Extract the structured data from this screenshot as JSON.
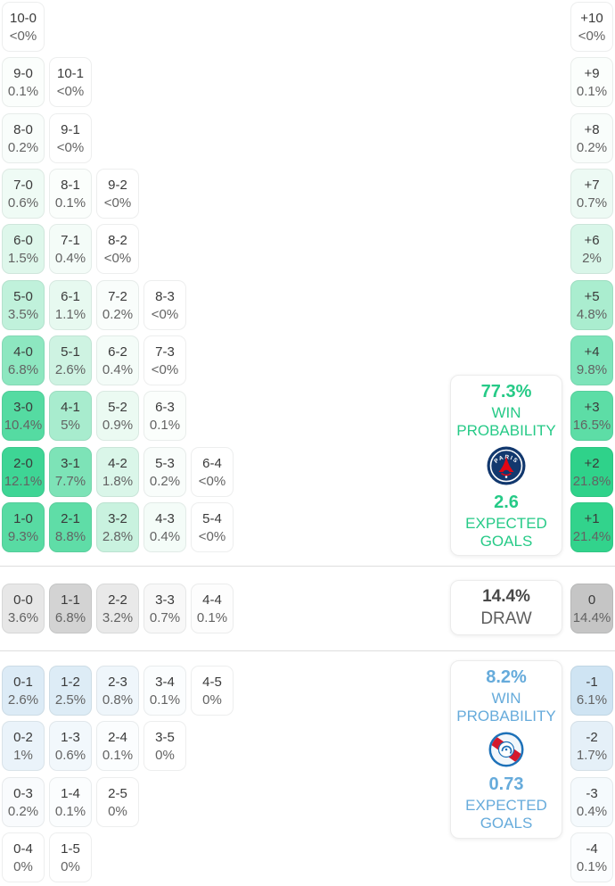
{
  "chart_data": {
    "type": "heatmap",
    "description_labels": {
      "home_color_max": "#3ed595",
      "away_color_max": "#cfe4f3",
      "draw_color_max": "#c5c5c5"
    },
    "sections": {
      "home_win": {
        "cells": [
          {
            "score": "10-0",
            "pct": "<0%",
            "value": 0,
            "bg": "#ffffff"
          },
          {
            "score": "9-0",
            "pct": "0.1%",
            "value": 0.1,
            "bg": "#fbfefc"
          },
          {
            "score": "10-1",
            "pct": "<0%",
            "value": 0,
            "bg": "#ffffff"
          },
          {
            "score": "8-0",
            "pct": "0.2%",
            "value": 0.2,
            "bg": "#f9fdfb"
          },
          {
            "score": "9-1",
            "pct": "<0%",
            "value": 0,
            "bg": "#ffffff"
          },
          {
            "score": "7-0",
            "pct": "0.6%",
            "value": 0.6,
            "bg": "#effbf5"
          },
          {
            "score": "8-1",
            "pct": "0.1%",
            "value": 0.1,
            "bg": "#fbfefc"
          },
          {
            "score": "9-2",
            "pct": "<0%",
            "value": 0,
            "bg": "#ffffff"
          },
          {
            "score": "6-0",
            "pct": "1.5%",
            "value": 1.5,
            "bg": "#def7eb"
          },
          {
            "score": "7-1",
            "pct": "0.4%",
            "value": 0.4,
            "bg": "#f4fcf8"
          },
          {
            "score": "8-2",
            "pct": "<0%",
            "value": 0,
            "bg": "#ffffff"
          },
          {
            "score": "5-0",
            "pct": "3.5%",
            "value": 3.5,
            "bg": "#c0f1db"
          },
          {
            "score": "6-1",
            "pct": "1.1%",
            "value": 1.1,
            "bg": "#e7f9f0"
          },
          {
            "score": "7-2",
            "pct": "0.2%",
            "value": 0.2,
            "bg": "#f9fdfb"
          },
          {
            "score": "8-3",
            "pct": "<0%",
            "value": 0,
            "bg": "#ffffff"
          },
          {
            "score": "4-0",
            "pct": "6.8%",
            "value": 6.8,
            "bg": "#8de7c0"
          },
          {
            "score": "5-1",
            "pct": "2.6%",
            "value": 2.6,
            "bg": "#cef3e2"
          },
          {
            "score": "6-2",
            "pct": "0.4%",
            "value": 0.4,
            "bg": "#f4fcf8"
          },
          {
            "score": "7-3",
            "pct": "<0%",
            "value": 0,
            "bg": "#ffffff"
          },
          {
            "score": "3-0",
            "pct": "10.4%",
            "value": 10.4,
            "bg": "#55dba2"
          },
          {
            "score": "4-1",
            "pct": "5%",
            "value": 5,
            "bg": "#a8ecce"
          },
          {
            "score": "5-2",
            "pct": "0.9%",
            "value": 0.9,
            "bg": "#ebfaf2"
          },
          {
            "score": "6-3",
            "pct": "0.1%",
            "value": 0.1,
            "bg": "#fbfefc"
          },
          {
            "score": "2-0",
            "pct": "12.1%",
            "value": 12.1,
            "bg": "#3ed595"
          },
          {
            "score": "3-1",
            "pct": "7.7%",
            "value": 7.7,
            "bg": "#7de3b7"
          },
          {
            "score": "4-2",
            "pct": "1.8%",
            "value": 1.8,
            "bg": "#daf6e9"
          },
          {
            "score": "5-3",
            "pct": "0.2%",
            "value": 0.2,
            "bg": "#f9fdfb"
          },
          {
            "score": "6-4",
            "pct": "<0%",
            "value": 0,
            "bg": "#ffffff"
          },
          {
            "score": "1-0",
            "pct": "9.3%",
            "value": 9.3,
            "bg": "#58dba3"
          },
          {
            "score": "2-1",
            "pct": "8.8%",
            "value": 8.8,
            "bg": "#5fdda7"
          },
          {
            "score": "3-2",
            "pct": "2.8%",
            "value": 2.8,
            "bg": "#c9f2df"
          },
          {
            "score": "4-3",
            "pct": "0.4%",
            "value": 0.4,
            "bg": "#f4fcf8"
          },
          {
            "score": "5-4",
            "pct": "<0%",
            "value": 0,
            "bg": "#ffffff"
          }
        ]
      },
      "draw": {
        "cells": [
          {
            "score": "0-0",
            "pct": "3.6%",
            "value": 3.6,
            "bg": "#e7e7e7"
          },
          {
            "score": "1-1",
            "pct": "6.8%",
            "value": 6.8,
            "bg": "#d3d3d3"
          },
          {
            "score": "2-2",
            "pct": "3.2%",
            "value": 3.2,
            "bg": "#e9e9e9"
          },
          {
            "score": "3-3",
            "pct": "0.7%",
            "value": 0.7,
            "bg": "#f8f8f8"
          },
          {
            "score": "4-4",
            "pct": "0.1%",
            "value": 0.1,
            "bg": "#fdfdfd"
          }
        ]
      },
      "away_win": {
        "cells": [
          {
            "score": "0-1",
            "pct": "2.6%",
            "value": 2.6,
            "bg": "#dcebf6"
          },
          {
            "score": "1-2",
            "pct": "2.5%",
            "value": 2.5,
            "bg": "#ddecf6"
          },
          {
            "score": "2-3",
            "pct": "0.8%",
            "value": 0.8,
            "bg": "#eff6fb"
          },
          {
            "score": "3-4",
            "pct": "0.1%",
            "value": 0.1,
            "bg": "#fbfdfe"
          },
          {
            "score": "4-5",
            "pct": "0%",
            "value": 0,
            "bg": "#ffffff"
          },
          {
            "score": "0-2",
            "pct": "1%",
            "value": 1,
            "bg": "#eaf3fa"
          },
          {
            "score": "1-3",
            "pct": "0.6%",
            "value": 0.6,
            "bg": "#f2f8fc"
          },
          {
            "score": "2-4",
            "pct": "0.1%",
            "value": 0.1,
            "bg": "#fbfdfe"
          },
          {
            "score": "3-5",
            "pct": "0%",
            "value": 0,
            "bg": "#ffffff"
          },
          {
            "score": "0-3",
            "pct": "0.2%",
            "value": 0.2,
            "bg": "#f9fbfd"
          },
          {
            "score": "1-4",
            "pct": "0.1%",
            "value": 0.1,
            "bg": "#fbfdfe"
          },
          {
            "score": "2-5",
            "pct": "0%",
            "value": 0,
            "bg": "#ffffff"
          },
          {
            "score": "0-4",
            "pct": "0%",
            "value": 0,
            "bg": "#ffffff"
          },
          {
            "score": "1-5",
            "pct": "0%",
            "value": 0,
            "bg": "#ffffff"
          }
        ]
      },
      "goal_difference": {
        "cells": [
          {
            "diff": "+10",
            "pct": "<0%",
            "value": 0,
            "bg": "#ffffff"
          },
          {
            "diff": "+9",
            "pct": "0.1%",
            "value": 0.1,
            "bg": "#fbfefc"
          },
          {
            "diff": "+8",
            "pct": "0.2%",
            "value": 0.2,
            "bg": "#f9fdfb"
          },
          {
            "diff": "+7",
            "pct": "0.7%",
            "value": 0.7,
            "bg": "#edfaf4"
          },
          {
            "diff": "+6",
            "pct": "2%",
            "value": 2,
            "bg": "#d9f6e9"
          },
          {
            "diff": "+5",
            "pct": "4.8%",
            "value": 4.8,
            "bg": "#aaedcf"
          },
          {
            "diff": "+4",
            "pct": "9.8%",
            "value": 9.8,
            "bg": "#7ee4ba"
          },
          {
            "diff": "+3",
            "pct": "16.5%",
            "value": 16.5,
            "bg": "#5ddda6"
          },
          {
            "diff": "+2",
            "pct": "21.8%",
            "value": 21.8,
            "bg": "#2fd28a"
          },
          {
            "diff": "+1",
            "pct": "21.4%",
            "value": 21.4,
            "bg": "#32d38c"
          },
          {
            "diff": "0",
            "pct": "14.4%",
            "value": 14.4,
            "bg": "#c5c5c5"
          },
          {
            "diff": "-1",
            "pct": "6.1%",
            "value": 6.1,
            "bg": "#cfe4f3"
          },
          {
            "diff": "-2",
            "pct": "1.7%",
            "value": 1.7,
            "bg": "#e5f0f8"
          },
          {
            "diff": "-3",
            "pct": "0.4%",
            "value": 0.4,
            "bg": "#f5fafd"
          },
          {
            "diff": "-4",
            "pct": "0.1%",
            "value": 0.1,
            "bg": "#fbfdfe"
          }
        ]
      }
    }
  },
  "summary": {
    "home": {
      "probability": "77.3%",
      "probability_label": "WIN PROBABILITY",
      "expected_goals": "2.6",
      "expected_goals_label": "EXPECTED GOALS",
      "accent_color": "#26ca87",
      "logo_icon": "psg-crest"
    },
    "draw": {
      "probability": "14.4%",
      "label": "DRAW"
    },
    "away": {
      "probability": "8.2%",
      "probability_label": "WIN PROBABILITY",
      "expected_goals": "0.73",
      "expected_goals_label": "EXPECTED GOALS",
      "accent_color": "#66abdb",
      "logo_icon": "strasbourg-crest"
    }
  }
}
